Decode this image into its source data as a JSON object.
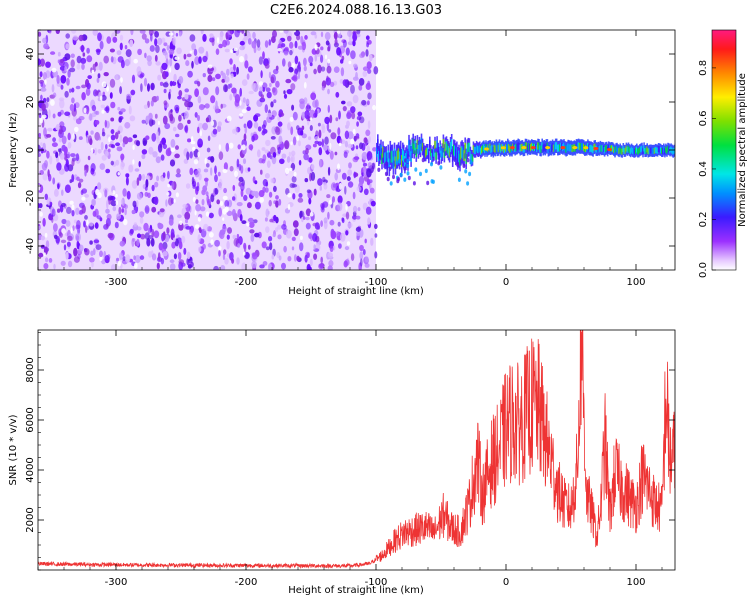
{
  "title": "C2E6.2024.088.16.13.G03",
  "chart_data": [
    {
      "type": "heatmap",
      "xlabel": "Height of straight line (km)",
      "ylabel": "Frequency (Hz)",
      "xlim": [
        -360,
        130
      ],
      "ylim": [
        -50,
        50
      ],
      "xticks": [
        -300,
        -200,
        -100,
        0,
        100
      ],
      "yticks": [
        -40,
        -20,
        0,
        20,
        40
      ],
      "noise_region_x": [
        -360,
        -100
      ],
      "signal_band": [
        {
          "x": -100,
          "f": 0,
          "width": 8
        },
        {
          "x": -90,
          "f": -4,
          "width": 10
        },
        {
          "x": -80,
          "f": -3,
          "width": 10
        },
        {
          "x": -70,
          "f": 1,
          "width": 8
        },
        {
          "x": -60,
          "f": 0,
          "width": 6
        },
        {
          "x": -45,
          "f": 1,
          "width": 8
        },
        {
          "x": -35,
          "f": -2,
          "width": 10
        },
        {
          "x": -25,
          "f": 0,
          "width": 6
        },
        {
          "x": 0,
          "f": 1,
          "width": 6
        },
        {
          "x": 30,
          "f": 1,
          "width": 6
        },
        {
          "x": 60,
          "f": 1,
          "width": 6
        },
        {
          "x": 85,
          "f": 0,
          "width": 5
        },
        {
          "x": 130,
          "f": 0,
          "width": 5
        }
      ],
      "colorbar": {
        "label": "Normalized spectral amplitude",
        "range": [
          0.0,
          0.95
        ],
        "ticks": [
          "0.0",
          "0.2",
          "0.4",
          "0.6",
          "0.8"
        ],
        "tick_values": [
          0.0,
          0.2,
          0.4,
          0.6,
          0.8
        ]
      }
    },
    {
      "type": "line",
      "xlabel": "Height of straight line (km)",
      "ylabel": "SNR (10 * v/v)",
      "xlim": [
        -360,
        130
      ],
      "ylim": [
        0,
        9600
      ],
      "xticks": [
        -300,
        -200,
        -100,
        0,
        100
      ],
      "yticks": [
        2000,
        4000,
        6000,
        8000
      ],
      "color": "#ee3333",
      "x": [
        -360,
        -340,
        -320,
        -300,
        -280,
        -260,
        -240,
        -220,
        -200,
        -180,
        -160,
        -140,
        -120,
        -105,
        -95,
        -85,
        -78,
        -70,
        -62,
        -55,
        -48,
        -42,
        -35,
        -28,
        -22,
        -18,
        -12,
        -5,
        0,
        5,
        10,
        15,
        20,
        25,
        30,
        35,
        40,
        45,
        50,
        55,
        58,
        62,
        66,
        70,
        73,
        76,
        80,
        84,
        88,
        92,
        96,
        100,
        105,
        110,
        115,
        120,
        123,
        126,
        130
      ],
      "y": [
        250,
        230,
        220,
        210,
        200,
        195,
        190,
        185,
        180,
        175,
        170,
        170,
        165,
        250,
        600,
        1200,
        1500,
        1600,
        1700,
        1500,
        2200,
        1700,
        1500,
        2700,
        4500,
        3000,
        4200,
        4800,
        5700,
        6000,
        5800,
        6200,
        6600,
        6500,
        5400,
        4300,
        3200,
        2600,
        2400,
        4100,
        9600,
        3000,
        2300,
        1300,
        2600,
        5200,
        2200,
        4000,
        3400,
        3100,
        2800,
        2500,
        3800,
        3200,
        2600,
        2400,
        7100,
        4400,
        4600
      ]
    }
  ]
}
